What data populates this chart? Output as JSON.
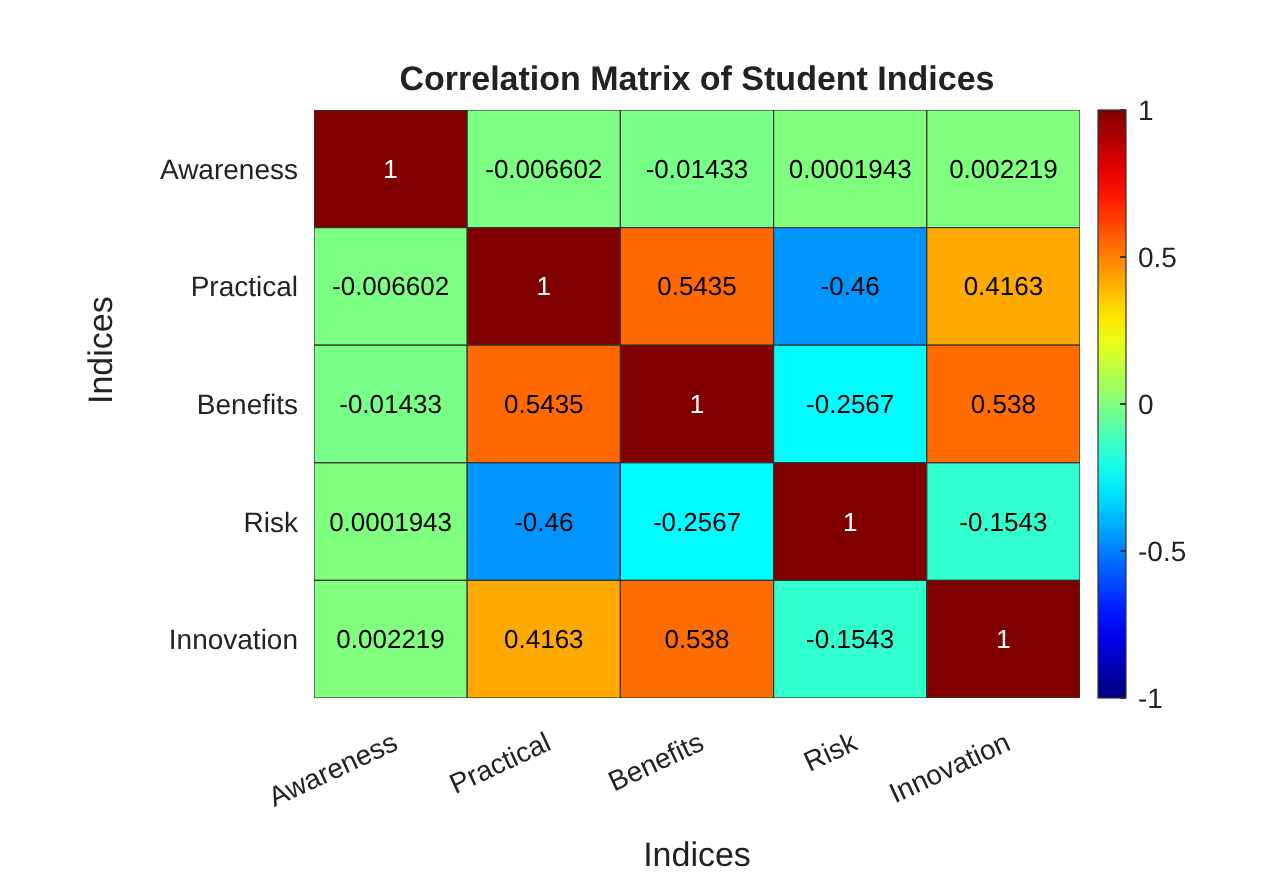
{
  "chart_data": {
    "type": "heatmap",
    "title": "Correlation Matrix of Student Indices",
    "xlabel": "Indices",
    "ylabel": "Indices",
    "categories": [
      "Awareness",
      "Practical",
      "Benefits",
      "Risk",
      "Innovation"
    ],
    "y_categories": [
      "Awareness",
      "Practical",
      "Benefits",
      "Risk",
      "Innovation"
    ],
    "cells": [
      [
        1,
        -0.006602,
        -0.01433,
        0.0001943,
        0.002219
      ],
      [
        -0.006602,
        1,
        0.5435,
        -0.46,
        0.4163
      ],
      [
        -0.01433,
        0.5435,
        1,
        -0.2567,
        0.538
      ],
      [
        0.0001943,
        -0.46,
        -0.2567,
        1,
        -0.1543
      ],
      [
        0.002219,
        0.4163,
        0.538,
        -0.1543,
        1
      ]
    ],
    "data_labels": true,
    "clim": [
      -1,
      1
    ],
    "cticks": [
      -1,
      -0.5,
      0,
      0.5,
      1
    ]
  }
}
